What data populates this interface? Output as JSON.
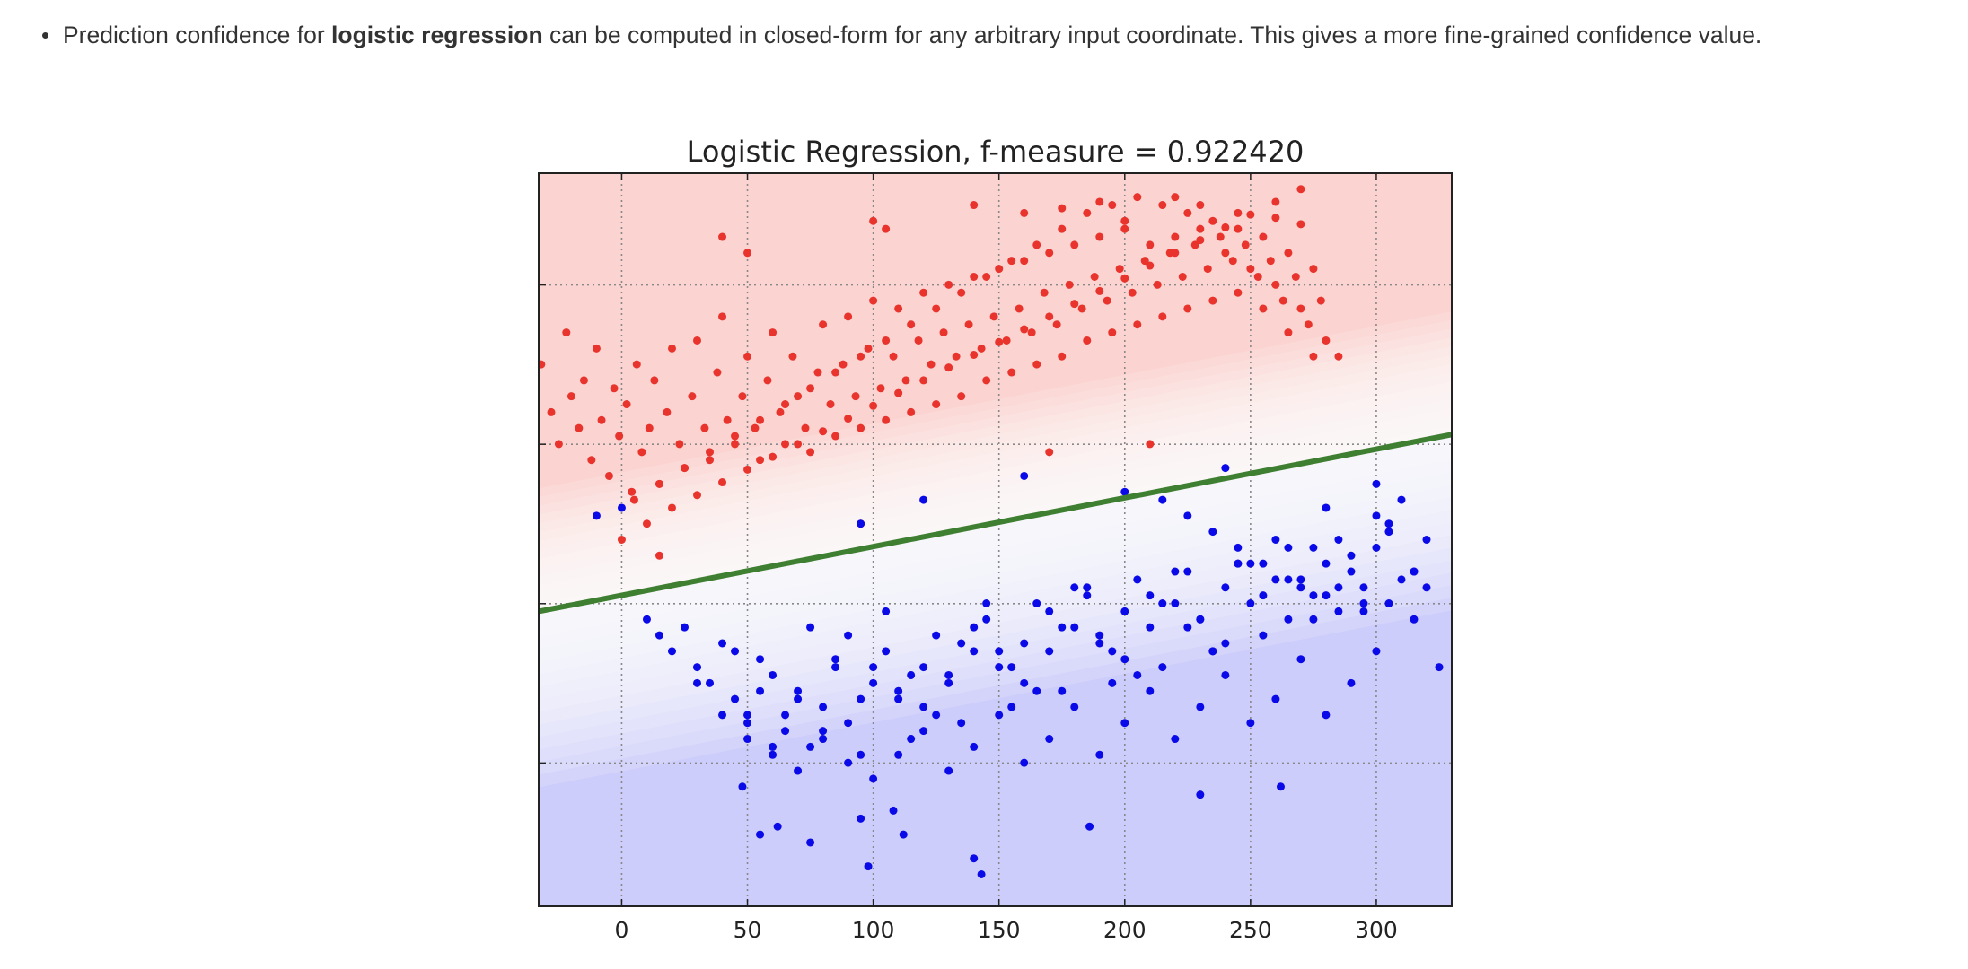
{
  "bullet": {
    "prefix": "Prediction confidence for ",
    "bold": "logistic regression",
    "suffix": " can be computed in closed-form for any arbitrary input coordinate. This gives a more fine-grained confidence value."
  },
  "chart_data": {
    "type": "scatter",
    "title": "Logistic Regression, f-measure = 0.922420",
    "xlabel": "",
    "ylabel": "",
    "xlim": [
      -33,
      330
    ],
    "ylim": [
      0,
      460
    ],
    "x_ticks": [
      0,
      50,
      100,
      150,
      200,
      250,
      300
    ],
    "grid": true,
    "legend": "none",
    "decision_boundary": {
      "x": [
        -33,
        330
      ],
      "y": [
        185,
        296
      ]
    },
    "colors": {
      "class_red": "#e8342d",
      "class_blue": "#0a0ae8",
      "region_red": "#fbd3d0",
      "region_blue": "#cdcdfb",
      "boundary": "#3f7f32"
    },
    "series": [
      {
        "color": "#e8342d",
        "x": [
          -32,
          -28,
          -25,
          -22,
          -20,
          -17,
          -15,
          -12,
          -10,
          -8,
          -5,
          -3,
          -1,
          2,
          4,
          6,
          8,
          11,
          13,
          15,
          18,
          20,
          23,
          25,
          28,
          30,
          33,
          35,
          38,
          40,
          42,
          45,
          48,
          50,
          53,
          55,
          58,
          60,
          63,
          65,
          68,
          70,
          73,
          75,
          78,
          80,
          83,
          85,
          88,
          90,
          93,
          95,
          98,
          100,
          103,
          105,
          108,
          110,
          113,
          115,
          118,
          120,
          123,
          125,
          128,
          130,
          133,
          135,
          138,
          140,
          143,
          145,
          148,
          150,
          153,
          155,
          158,
          160,
          163,
          165,
          168,
          170,
          173,
          175,
          178,
          180,
          183,
          185,
          188,
          190,
          193,
          195,
          198,
          200,
          203,
          205,
          208,
          210,
          213,
          215,
          218,
          220,
          223,
          225,
          228,
          230,
          233,
          235,
          238,
          240,
          243,
          245,
          248,
          250,
          253,
          255,
          258,
          260,
          263,
          265,
          268,
          270,
          273,
          275,
          278,
          280,
          5,
          15,
          25,
          35,
          45,
          55,
          65,
          75,
          85,
          95,
          105,
          115,
          125,
          135,
          145,
          155,
          165,
          175,
          185,
          195,
          205,
          215,
          225,
          235,
          245,
          255,
          265,
          275,
          0,
          10,
          20,
          30,
          40,
          50,
          60,
          70,
          80,
          90,
          100,
          110,
          120,
          130,
          140,
          150,
          160,
          170,
          180,
          190,
          200,
          210,
          220,
          230,
          240,
          250,
          260,
          270,
          40,
          50,
          100,
          105,
          140,
          160,
          175,
          190,
          200,
          220,
          230,
          245,
          260,
          270,
          285,
          15,
          95,
          170,
          210
        ],
        "y": [
          340,
          310,
          290,
          360,
          320,
          300,
          330,
          280,
          350,
          305,
          270,
          325,
          295,
          315,
          260,
          340,
          285,
          300,
          330,
          265,
          310,
          350,
          290,
          275,
          320,
          355,
          300,
          280,
          335,
          370,
          305,
          290,
          320,
          345,
          300,
          280,
          330,
          360,
          310,
          290,
          345,
          320,
          300,
          285,
          335,
          365,
          315,
          295,
          340,
          370,
          320,
          300,
          350,
          380,
          325,
          305,
          345,
          375,
          330,
          310,
          355,
          385,
          340,
          315,
          360,
          390,
          345,
          320,
          365,
          395,
          350,
          330,
          370,
          400,
          355,
          335,
          375,
          405,
          360,
          340,
          385,
          410,
          365,
          345,
          390,
          415,
          375,
          355,
          395,
          420,
          380,
          360,
          400,
          425,
          385,
          365,
          405,
          415,
          390,
          370,
          410,
          420,
          395,
          375,
          415,
          425,
          400,
          380,
          420,
          410,
          405,
          385,
          415,
          400,
          395,
          375,
          405,
          390,
          380,
          360,
          395,
          375,
          365,
          345,
          380,
          355,
          255,
          265,
          275,
          285,
          295,
          305,
          315,
          325,
          335,
          345,
          355,
          365,
          375,
          385,
          395,
          405,
          415,
          425,
          435,
          440,
          445,
          440,
          435,
          430,
          425,
          420,
          410,
          400,
          230,
          240,
          250,
          258,
          266,
          274,
          282,
          290,
          298,
          306,
          314,
          322,
          330,
          338,
          346,
          354,
          362,
          370,
          378,
          386,
          394,
          402,
          410,
          418,
          426,
          434,
          442,
          450,
          420,
          410,
          430,
          425,
          440,
          435,
          438,
          442,
          430,
          445,
          440,
          435,
          432,
          428,
          345,
          220,
          240,
          285,
          290
        ]
      },
      {
        "color": "#0a0ae8",
        "x": [
          -10,
          0,
          10,
          15,
          20,
          25,
          30,
          35,
          40,
          45,
          50,
          55,
          60,
          65,
          70,
          75,
          80,
          85,
          90,
          95,
          100,
          105,
          110,
          115,
          120,
          125,
          130,
          135,
          140,
          145,
          150,
          155,
          160,
          165,
          170,
          175,
          180,
          185,
          190,
          195,
          200,
          205,
          210,
          215,
          220,
          225,
          230,
          235,
          240,
          245,
          250,
          255,
          260,
          265,
          270,
          275,
          280,
          285,
          290,
          295,
          300,
          305,
          310,
          315,
          320,
          325,
          30,
          40,
          50,
          60,
          70,
          80,
          90,
          100,
          110,
          120,
          130,
          140,
          150,
          160,
          170,
          180,
          190,
          200,
          210,
          220,
          230,
          240,
          250,
          260,
          270,
          280,
          290,
          300,
          310,
          45,
          55,
          65,
          75,
          85,
          95,
          105,
          115,
          125,
          135,
          145,
          155,
          165,
          175,
          185,
          195,
          205,
          215,
          225,
          235,
          245,
          255,
          265,
          275,
          285,
          295,
          305,
          315,
          50,
          60,
          70,
          80,
          90,
          100,
          110,
          120,
          130,
          140,
          150,
          160,
          170,
          180,
          190,
          200,
          210,
          220,
          230,
          240,
          250,
          260,
          270,
          280,
          290,
          300,
          48,
          55,
          62,
          75,
          95,
          98,
          108,
          112,
          140,
          143,
          186,
          230,
          262,
          95,
          120,
          160,
          200,
          240,
          280,
          300,
          320,
          315,
          305,
          295,
          285,
          275,
          265,
          255,
          245,
          235,
          225,
          215
        ],
        "y": [
          245,
          250,
          180,
          170,
          160,
          175,
          150,
          140,
          165,
          130,
          120,
          155,
          145,
          110,
          135,
          100,
          125,
          150,
          115,
          95,
          140,
          160,
          130,
          105,
          150,
          170,
          140,
          115,
          160,
          180,
          150,
          125,
          165,
          190,
          160,
          135,
          175,
          195,
          165,
          140,
          185,
          205,
          175,
          150,
          190,
          210,
          180,
          160,
          200,
          215,
          190,
          170,
          205,
          225,
          200,
          180,
          215,
          230,
          210,
          190,
          225,
          240,
          205,
          180,
          200,
          150,
          140,
          120,
          105,
          95,
          130,
          110,
          170,
          150,
          135,
          125,
          145,
          175,
          160,
          140,
          185,
          200,
          170,
          155,
          195,
          210,
          180,
          165,
          215,
          230,
          205,
          195,
          220,
          245,
          255,
          160,
          135,
          120,
          175,
          155,
          130,
          185,
          145,
          120,
          165,
          190,
          150,
          135,
          175,
          200,
          160,
          145,
          190,
          175,
          160,
          215,
          195,
          180,
          225,
          200,
          185,
          235,
          210,
          115,
          100,
          85,
          105,
          90,
          80,
          95,
          110,
          85,
          100,
          120,
          90,
          105,
          125,
          95,
          115,
          135,
          105,
          125,
          145,
          115,
          130,
          155,
          120,
          140,
          160,
          75,
          45,
          50,
          40,
          55,
          25,
          60,
          45,
          30,
          20,
          50,
          70,
          75,
          240,
          255,
          270,
          260,
          275,
          250,
          265,
          230,
          210,
          190,
          200,
          185,
          195,
          205,
          215,
          225,
          235,
          245,
          255
        ]
      }
    ]
  }
}
